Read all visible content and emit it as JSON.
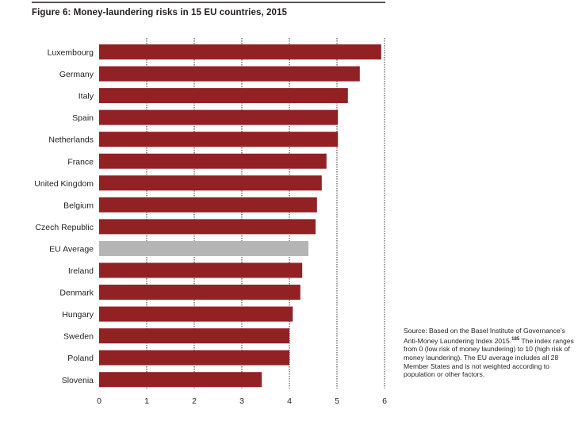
{
  "chart_data": {
    "type": "bar",
    "orientation": "horizontal",
    "title": "Figure 6: Money-laundering risks in 15 EU countries, 2015",
    "xlabel": "",
    "ylabel": "",
    "xlim": [
      0,
      6
    ],
    "xticks": [
      0,
      1,
      2,
      3,
      4,
      5,
      6
    ],
    "grid": "vertical dotted",
    "categories": [
      "Luxembourg",
      "Germany",
      "Italy",
      "Spain",
      "Netherlands",
      "France",
      "United Kingdom",
      "Belgium",
      "Czech Republic",
      "EU Average",
      "Ireland",
      "Denmark",
      "Hungary",
      "Sweden",
      "Poland",
      "Slovenia"
    ],
    "values": [
      5.93,
      5.48,
      5.23,
      5.02,
      5.02,
      4.78,
      4.68,
      4.58,
      4.55,
      4.4,
      4.27,
      4.23,
      4.07,
      4.0,
      4.0,
      3.42
    ],
    "highlight_category": "EU Average",
    "colors": {
      "bar": "#922124",
      "highlight": "#b5b5b5",
      "grid": "#555555"
    }
  },
  "source_note": {
    "prefix": "Source: Based on the Basel Institute of Governance’s Anti-Money Laundering Index 2015.",
    "footnote": "185",
    "suffix": " The index ranges from 0 (low risk of money laundering) to 10 (high risk of money laundering). The EU average includes all 28 Member States and is not weighted according to population or other factors."
  }
}
